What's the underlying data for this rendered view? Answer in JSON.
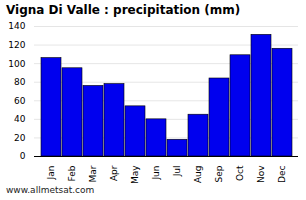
{
  "chart_data": {
    "type": "bar",
    "title": "Vigna Di Valle : precipitation (mm)",
    "categories": [
      "Jan",
      "Feb",
      "Mar",
      "Apr",
      "May",
      "Jun",
      "Jul",
      "Aug",
      "Sep",
      "Oct",
      "Nov",
      "Dec"
    ],
    "values": [
      106,
      95,
      76,
      78,
      54,
      40,
      18,
      45,
      84,
      109,
      131,
      116
    ],
    "color": "#0000EE",
    "ylim": [
      0,
      140
    ],
    "yticks": [
      0,
      20,
      40,
      60,
      80,
      100,
      120,
      140
    ],
    "grid": true,
    "annotation": "www.allmetsat.com"
  }
}
